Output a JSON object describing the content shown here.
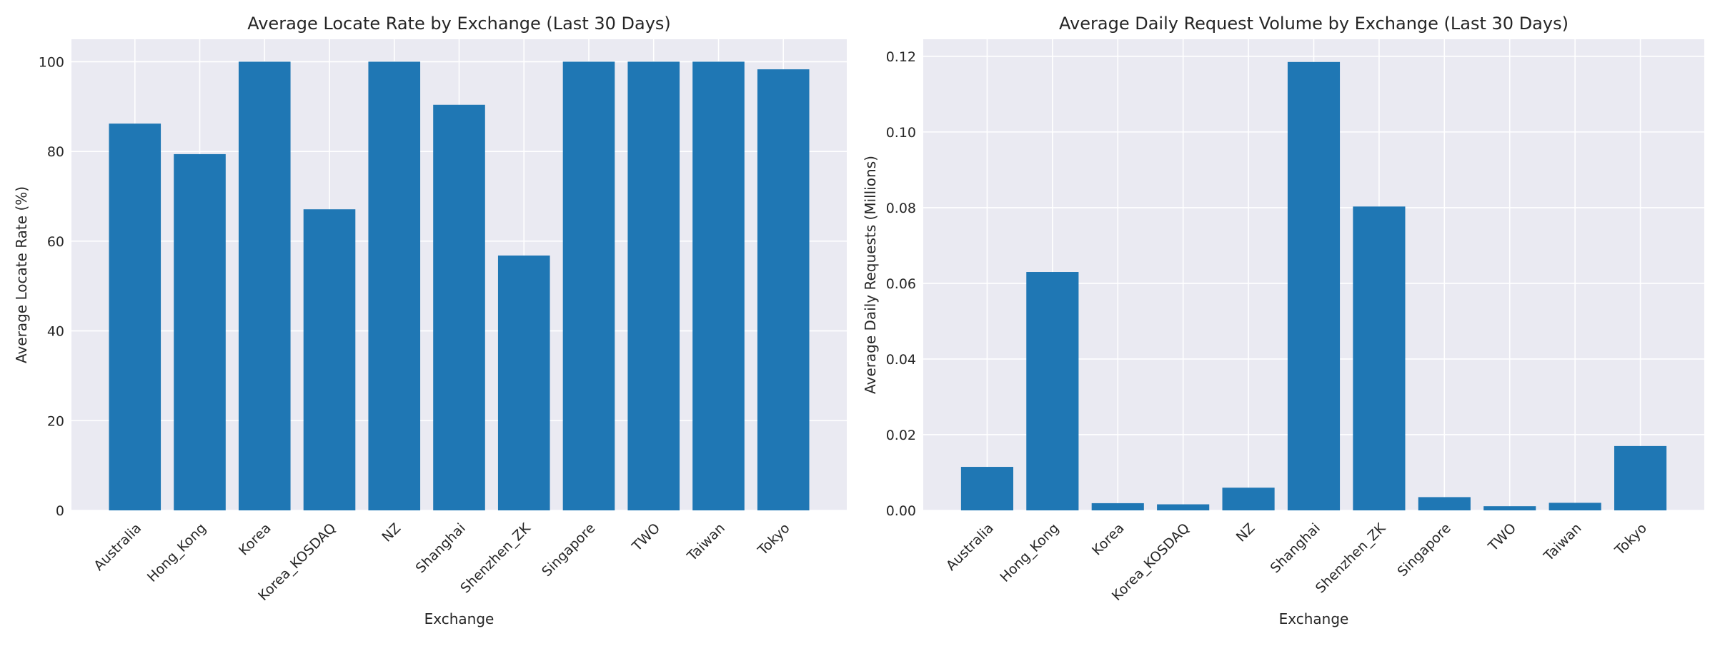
{
  "charts": [
    {
      "type": "bar",
      "title": "Average Locate Rate by Exchange (Last 30 Days)",
      "xlabel": "Exchange",
      "ylabel": "Average Locate Rate (%)",
      "categories": [
        "Australia",
        "Hong_Kong",
        "Korea",
        "Korea_KOSDAQ",
        "NZ",
        "Shanghai",
        "Shenzhen_ZK",
        "Singapore",
        "TWO",
        "Taiwan",
        "Tokyo"
      ],
      "values": [
        86.2,
        79.4,
        100,
        67.1,
        100,
        90.4,
        56.8,
        100,
        100,
        100,
        98.3
      ],
      "ylim": [
        0,
        105
      ],
      "yticks": [
        0,
        20,
        40,
        60,
        80,
        100
      ],
      "ytick_labels": [
        "0",
        "20",
        "40",
        "60",
        "80",
        "100"
      ],
      "bar_color": "#1f77b4",
      "grid": true,
      "background": "#eaeaf2"
    },
    {
      "type": "bar",
      "title": "Average Daily Request Volume by Exchange (Last 30 Days)",
      "xlabel": "Exchange",
      "ylabel": "Average Daily Requests (Millions)",
      "categories": [
        "Australia",
        "Hong_Kong",
        "Korea",
        "Korea_KOSDAQ",
        "NZ",
        "Shanghai",
        "Shenzhen_ZK",
        "Singapore",
        "TWO",
        "Taiwan",
        "Tokyo"
      ],
      "values": [
        0.0115,
        0.063,
        0.0019,
        0.0016,
        0.006,
        0.1185,
        0.0803,
        0.0035,
        0.0011,
        0.002,
        0.017
      ],
      "ylim": [
        0,
        0.1245
      ],
      "yticks": [
        0,
        0.02,
        0.04,
        0.06,
        0.08,
        0.1,
        0.12
      ],
      "ytick_labels": [
        "0.00",
        "0.02",
        "0.04",
        "0.06",
        "0.08",
        "0.10",
        "0.12"
      ],
      "bar_color": "#1f77b4",
      "grid": true,
      "background": "#eaeaf2"
    }
  ]
}
